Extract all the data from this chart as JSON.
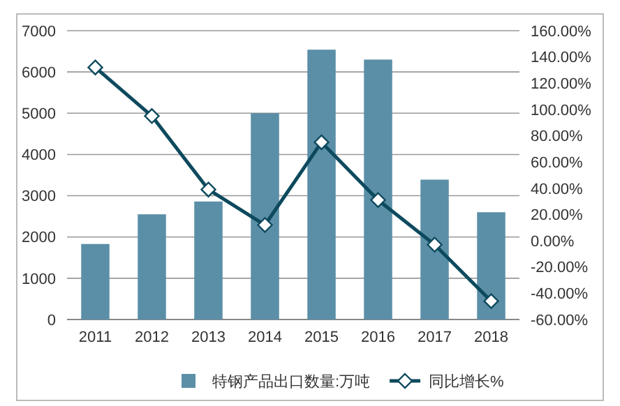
{
  "chart_data": {
    "type": "bar",
    "categories": [
      "2011",
      "2012",
      "2013",
      "2014",
      "2015",
      "2016",
      "2017",
      "2018"
    ],
    "series": [
      {
        "name": "特钢产品出口数量:万吨",
        "color": "#5b8fa8",
        "values": [
          1830,
          2550,
          2860,
          5000,
          6540,
          6300,
          3390,
          2600
        ]
      },
      {
        "name": "同比增长%",
        "type": "line",
        "axis": "y2",
        "color": "#0e4a5e",
        "marker": "diamond",
        "values": [
          132,
          95,
          39,
          12,
          75,
          31,
          -3,
          -46
        ]
      }
    ],
    "ylim": [
      0,
      7000
    ],
    "yticks": [
      0,
      1000,
      2000,
      3000,
      4000,
      5000,
      6000,
      7000
    ],
    "y2lim": [
      -60,
      160
    ],
    "y2ticks": [
      {
        "value": -60,
        "label": "-60.00%"
      },
      {
        "value": -40,
        "label": "-40.00%"
      },
      {
        "value": -20,
        "label": "-20.00%"
      },
      {
        "value": 0,
        "label": "0.00%"
      },
      {
        "value": 20,
        "label": "20.00%"
      },
      {
        "value": 40,
        "label": "40.00%"
      },
      {
        "value": 60,
        "label": "60.00%"
      },
      {
        "value": 80,
        "label": "80.00%"
      },
      {
        "value": 100,
        "label": "100.00%"
      },
      {
        "value": 120,
        "label": "120.00%"
      },
      {
        "value": 140,
        "label": "140.00%"
      },
      {
        "value": 160,
        "label": "160.00%"
      }
    ],
    "grid": "y",
    "legend": "bottom"
  }
}
